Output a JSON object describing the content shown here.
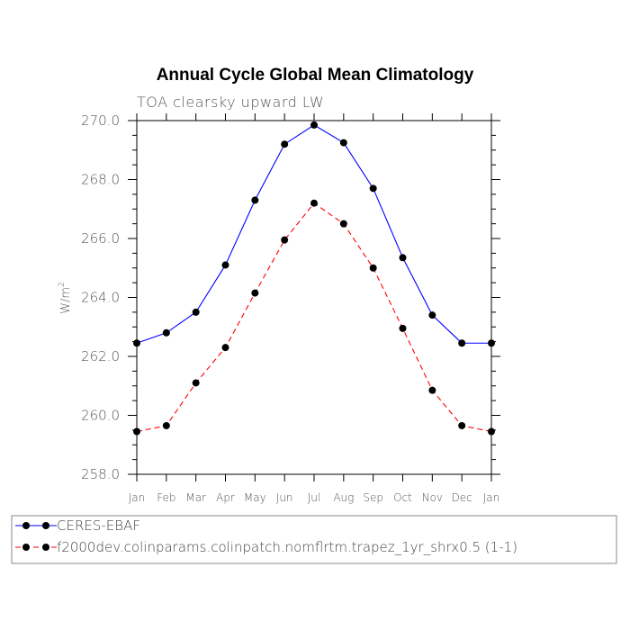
{
  "chart_data": {
    "type": "line",
    "title": "Annual Cycle Global Mean Climatology",
    "subtitle": "TOA clearsky upward LW",
    "ylabel": "W/m",
    "ylabel_superscript": "2",
    "categories": [
      "Jan",
      "Feb",
      "Mar",
      "Apr",
      "May",
      "Jun",
      "Jul",
      "Aug",
      "Sep",
      "Oct",
      "Nov",
      "Dec",
      "Jan"
    ],
    "ylim": [
      258.0,
      270.0
    ],
    "yticks": [
      "258.0",
      "260.0",
      "262.0",
      "264.0",
      "266.0",
      "268.0",
      "270.0"
    ],
    "ytick_values": [
      258.0,
      260.0,
      262.0,
      264.0,
      266.0,
      268.0,
      270.0
    ],
    "series": [
      {
        "name": "CERES-EBAF",
        "color": "#0000ff",
        "dash": "solid",
        "values": [
          262.45,
          262.8,
          263.5,
          265.1,
          267.3,
          269.2,
          269.85,
          269.25,
          267.7,
          265.35,
          263.4,
          262.45,
          262.45
        ]
      },
      {
        "name": "f2000dev.colinparams.colinpatch.nomflrtm.trapez_1yr_shrx0.5 (1-1)",
        "color": "#ff0000",
        "dash": "dashed",
        "values": [
          259.45,
          259.65,
          261.1,
          262.3,
          264.15,
          265.95,
          267.2,
          266.5,
          265.0,
          262.95,
          260.85,
          259.65,
          259.45
        ]
      }
    ],
    "marker_color": "#000000",
    "grid": false
  }
}
